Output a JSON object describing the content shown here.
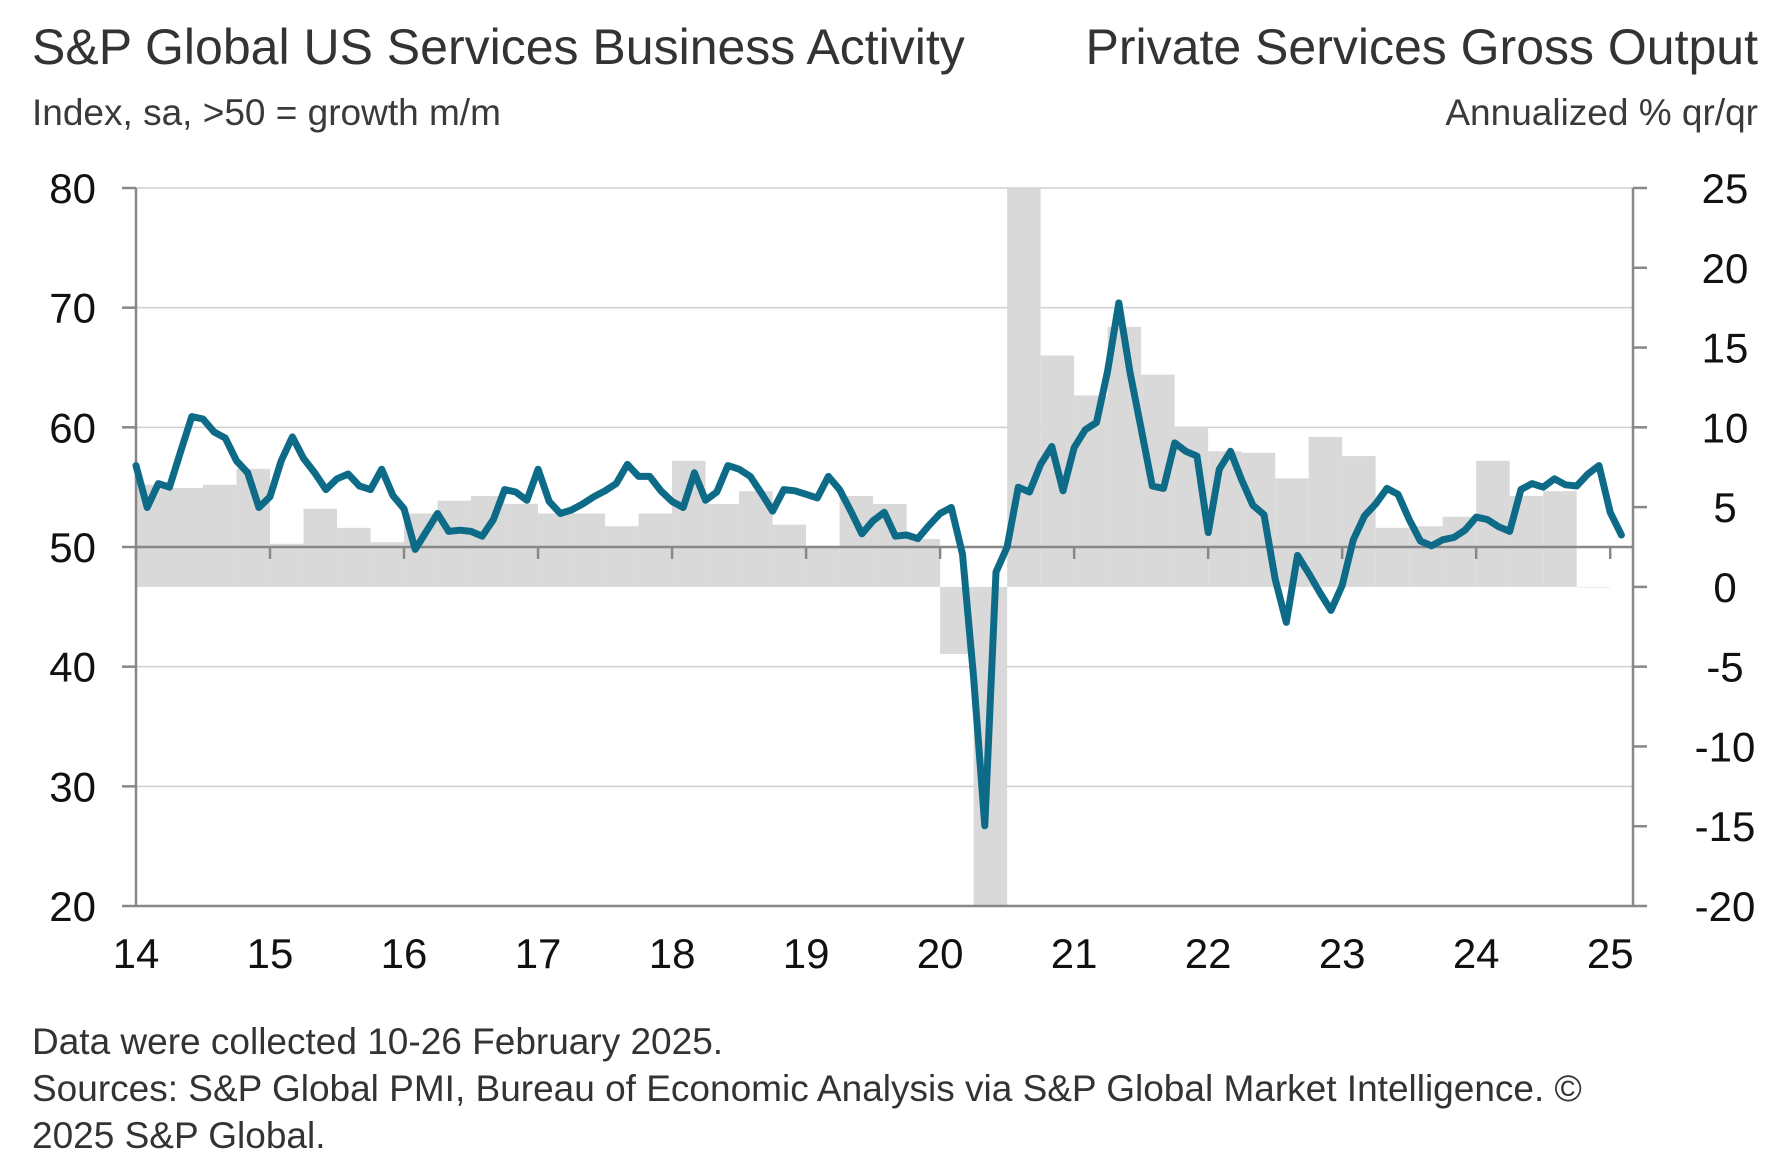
{
  "header": {
    "title_left": "S&P Global US Services Business Activity",
    "subtitle_left": "Index, sa, >50 = growth m/m",
    "title_right": "Private Services Gross Output",
    "subtitle_right": "Annualized % qr/qr"
  },
  "footer": {
    "line1": "Data were collected 10-26 February 2025.",
    "line2": "Sources: S&P Global PMI, Bureau of Economic Analysis via S&P Global Market Intelligence. ©",
    "line3": "2025 S&P Global."
  },
  "colors": {
    "line": "#0e6b87",
    "bars": "#d9d9d9",
    "grid": "#cfcfcf",
    "axis": "#888888"
  },
  "chart_data": {
    "type": "line+bar",
    "grid": true,
    "left_axis": {
      "ylim": [
        20,
        80
      ],
      "ticks": [
        "80",
        "70",
        "60",
        "50",
        "40",
        "30",
        "20"
      ]
    },
    "right_axis": {
      "ylim": [
        -20,
        25
      ],
      "ticks": [
        "25",
        "20",
        "15",
        "10",
        "5",
        "0",
        "-5",
        "-10",
        "-15",
        "-20"
      ]
    },
    "x_axis": {
      "range": [
        2014.0,
        2025.17
      ],
      "ticks": [
        "14",
        "15",
        "16",
        "17",
        "18",
        "19",
        "20",
        "21",
        "22",
        "23",
        "24",
        "25"
      ]
    },
    "series": [
      {
        "kind": "bar",
        "axis": "right",
        "points": [
          {
            "x": 2014.0,
            "y": 6.4
          },
          {
            "x": 2014.25,
            "y": 6.2
          },
          {
            "x": 2014.5,
            "y": 6.4
          },
          {
            "x": 2014.75,
            "y": 7.4
          },
          {
            "x": 2015.0,
            "y": 2.7
          },
          {
            "x": 2015.25,
            "y": 4.9
          },
          {
            "x": 2015.5,
            "y": 3.7
          },
          {
            "x": 2015.75,
            "y": 2.8
          },
          {
            "x": 2016.0,
            "y": 4.6
          },
          {
            "x": 2016.25,
            "y": 5.4
          },
          {
            "x": 2016.5,
            "y": 5.7
          },
          {
            "x": 2016.75,
            "y": 5.2
          },
          {
            "x": 2017.0,
            "y": 4.6
          },
          {
            "x": 2017.25,
            "y": 4.6
          },
          {
            "x": 2017.5,
            "y": 3.8
          },
          {
            "x": 2017.75,
            "y": 4.6
          },
          {
            "x": 2018.0,
            "y": 7.9
          },
          {
            "x": 2018.25,
            "y": 5.2
          },
          {
            "x": 2018.5,
            "y": 6.0
          },
          {
            "x": 2018.75,
            "y": 3.9
          },
          {
            "x": 2019.0,
            "y": 2.5
          },
          {
            "x": 2019.25,
            "y": 5.7
          },
          {
            "x": 2019.5,
            "y": 5.2
          },
          {
            "x": 2019.75,
            "y": 3.0
          },
          {
            "x": 2020.0,
            "y": -4.2
          },
          {
            "x": 2020.25,
            "y": -20.0
          },
          {
            "x": 2020.5,
            "y": 25.0
          },
          {
            "x": 2020.75,
            "y": 14.5
          },
          {
            "x": 2021.0,
            "y": 12.0
          },
          {
            "x": 2021.25,
            "y": 16.3
          },
          {
            "x": 2021.5,
            "y": 13.3
          },
          {
            "x": 2021.75,
            "y": 10.0
          },
          {
            "x": 2022.0,
            "y": 8.5
          },
          {
            "x": 2022.25,
            "y": 8.4
          },
          {
            "x": 2022.5,
            "y": 6.8
          },
          {
            "x": 2022.75,
            "y": 9.4
          },
          {
            "x": 2023.0,
            "y": 8.2
          },
          {
            "x": 2023.25,
            "y": 3.7
          },
          {
            "x": 2023.5,
            "y": 3.8
          },
          {
            "x": 2023.75,
            "y": 4.4
          },
          {
            "x": 2024.0,
            "y": 7.9
          },
          {
            "x": 2024.25,
            "y": 5.7
          },
          {
            "x": 2024.5,
            "y": 6.0
          },
          {
            "x": 2024.75,
            "y": 0.0
          }
        ]
      },
      {
        "kind": "line",
        "axis": "left",
        "start": 2014.0,
        "step_months": 1,
        "values": [
          56.8,
          53.3,
          55.3,
          55.0,
          58.0,
          60.9,
          60.7,
          59.6,
          59.1,
          57.2,
          56.2,
          53.3,
          54.2,
          57.2,
          59.2,
          57.4,
          56.2,
          54.8,
          55.7,
          56.1,
          55.1,
          54.8,
          56.5,
          54.3,
          53.2,
          49.8,
          51.3,
          52.8,
          51.3,
          51.4,
          51.3,
          50.9,
          52.3,
          54.8,
          54.6,
          53.9,
          56.5,
          53.8,
          52.8,
          53.1,
          53.6,
          54.2,
          54.7,
          55.3,
          56.9,
          55.9,
          55.9,
          54.7,
          53.8,
          53.3,
          56.2,
          53.9,
          54.6,
          56.8,
          56.5,
          55.9,
          54.5,
          53.0,
          54.8,
          54.7,
          54.4,
          54.1,
          55.9,
          54.8,
          53.0,
          51.1,
          52.2,
          52.9,
          50.9,
          51.0,
          50.7,
          51.8,
          52.8,
          53.3,
          49.4,
          39.1,
          26.7,
          47.9,
          50.0,
          55.0,
          54.6,
          56.9,
          58.4,
          54.7,
          58.3,
          59.8,
          60.4,
          64.7,
          70.4,
          64.6,
          59.9,
          55.1,
          54.9,
          58.7,
          58.0,
          57.6,
          51.2,
          56.5,
          58.0,
          55.6,
          53.5,
          52.7,
          47.3,
          43.7,
          49.3,
          47.8,
          46.2,
          44.7,
          46.8,
          50.6,
          52.6,
          53.6,
          54.9,
          54.4,
          52.3,
          50.5,
          50.1,
          50.6,
          50.8,
          51.4,
          52.5,
          52.3,
          51.7,
          51.3,
          54.8,
          55.3,
          55.0,
          55.7,
          55.2,
          55.1,
          56.1,
          56.8,
          52.9,
          51.0
        ]
      }
    ]
  }
}
